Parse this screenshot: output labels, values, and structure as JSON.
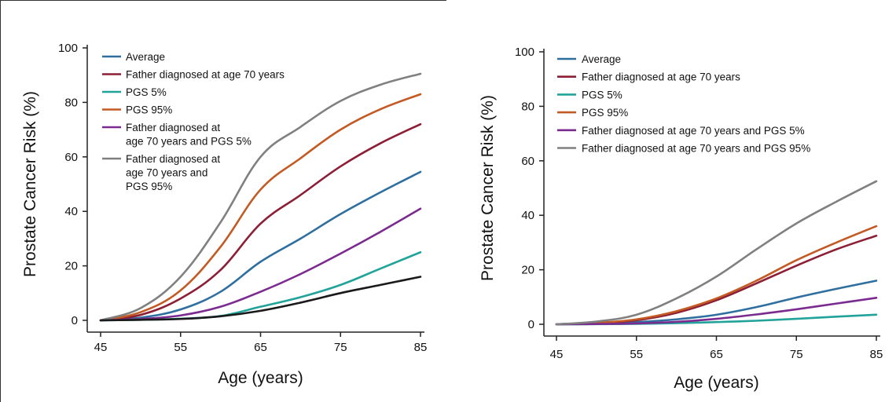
{
  "chart_data": [
    {
      "type": "line",
      "title": "",
      "xlabel": "Age (years)",
      "ylabel": "Prostate Cancer Risk (%)",
      "xlim": [
        45,
        85
      ],
      "ylim": [
        0,
        100
      ],
      "xticks": [
        "45",
        "55",
        "65",
        "75",
        "85"
      ],
      "yticks": [
        "0",
        "20",
        "40",
        "60",
        "80",
        "100"
      ],
      "grid": false,
      "legend_position": "top-left",
      "x": [
        45,
        50,
        55,
        60,
        65,
        70,
        75,
        80,
        85
      ],
      "series": [
        {
          "name": "Average",
          "color": "#2f6f9f",
          "values": [
            0,
            1,
            4,
            10.5,
            21.5,
            30,
            39,
            47,
            54.5
          ]
        },
        {
          "name": "Father diagnosed at age 70 years",
          "color": "#8c1f35",
          "values": [
            0,
            2,
            8,
            18.5,
            35.5,
            46,
            56.5,
            65,
            72
          ]
        },
        {
          "name": "PGS 5%",
          "color": "#22a39a",
          "values": [
            0,
            0.2,
            0.6,
            1.6,
            5,
            8.5,
            13,
            19,
            25
          ]
        },
        {
          "name": "PGS 95%",
          "color": "#c35a24",
          "values": [
            0,
            3,
            11,
            27,
            48,
            59.5,
            70,
            77.5,
            83
          ]
        },
        {
          "name": "Father diagnosed at age 70 years and PGS 5%",
          "legend_lines": [
            "Father diagnosed at",
            "age 70 years and PGS 5%"
          ],
          "color": "#7b2b8f",
          "values": [
            0,
            0.5,
            1.8,
            5,
            10.5,
            17,
            24.5,
            32.5,
            41
          ]
        },
        {
          "name": "Father diagnosed at age 70 years and PGS 95%",
          "legend_lines": [
            "Father diagnosed at",
            "age 70 years and",
            "PGS 95%"
          ],
          "color": "#808080",
          "values": [
            0,
            4.5,
            16,
            36,
            60,
            71,
            80.5,
            86.5,
            90.5
          ]
        },
        {
          "name": "",
          "color": "#1a1a1a",
          "values": [
            0,
            0.2,
            0.5,
            1.5,
            3.5,
            6.5,
            10,
            13,
            16
          ]
        }
      ]
    },
    {
      "type": "line",
      "title": "",
      "xlabel": "Age (years)",
      "ylabel": "Prostate Cancer Risk (%)",
      "xlim": [
        45,
        85
      ],
      "ylim": [
        0,
        100
      ],
      "xticks": [
        "45",
        "55",
        "65",
        "75",
        "85"
      ],
      "yticks": [
        "0",
        "20",
        "40",
        "60",
        "80",
        "100"
      ],
      "grid": false,
      "legend_position": "top-left",
      "x": [
        45,
        50,
        55,
        60,
        65,
        70,
        75,
        80,
        85
      ],
      "series": [
        {
          "name": "Average",
          "color": "#2f6f9f",
          "values": [
            0,
            0.2,
            0.8,
            1.8,
            3.5,
            6.3,
            9.8,
            13,
            16
          ]
        },
        {
          "name": "Father diagnosed at age 70 years",
          "color": "#8c1f35",
          "values": [
            0,
            0.5,
            1.5,
            4.2,
            8.8,
            15,
            21.5,
            27.5,
            32.5
          ]
        },
        {
          "name": "PGS 5%",
          "color": "#22a39a",
          "values": [
            0,
            0.05,
            0.15,
            0.4,
            0.8,
            1.3,
            2,
            2.8,
            3.5
          ]
        },
        {
          "name": "PGS 95%",
          "color": "#c35a24",
          "values": [
            0,
            0.5,
            1.8,
            4.8,
            9.5,
            16,
            23.5,
            30,
            36
          ]
        },
        {
          "name": "Father diagnosed at age 70 years and PGS 5%",
          "color": "#7b2b8f",
          "values": [
            0,
            0.1,
            0.3,
            0.9,
            2,
            3.6,
            5.5,
            7.6,
            9.7
          ]
        },
        {
          "name": "Father diagnosed at age 70 years and PGS 95%",
          "color": "#808080",
          "values": [
            0,
            1,
            3.5,
            9.5,
            17.5,
            27.5,
            37,
            45,
            52.5
          ]
        }
      ]
    }
  ]
}
